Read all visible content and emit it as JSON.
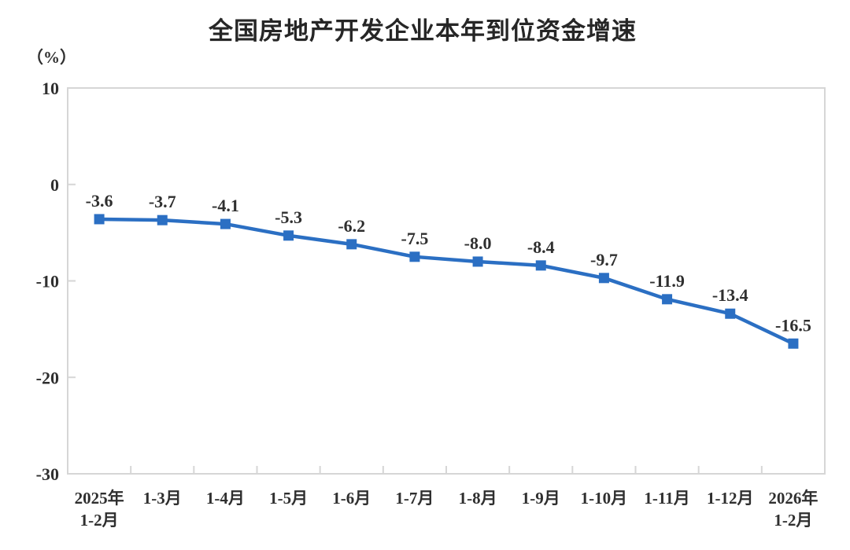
{
  "chart_data": {
    "type": "line",
    "title": "全国房地产开发企业本年到位资金增速",
    "ylabel": "（%）",
    "xlabel": "",
    "categories": [
      [
        "2025年",
        "1-2月"
      ],
      [
        "1-3月"
      ],
      [
        "1-4月"
      ],
      [
        "1-5月"
      ],
      [
        "1-6月"
      ],
      [
        "1-7月"
      ],
      [
        "1-8月"
      ],
      [
        "1-9月"
      ],
      [
        "1-10月"
      ],
      [
        "1-11月"
      ],
      [
        "1-12月"
      ],
      [
        "2026年",
        "1-2月"
      ]
    ],
    "values": [
      -3.6,
      -3.7,
      -4.1,
      -5.3,
      -6.2,
      -7.5,
      -8.0,
      -8.4,
      -9.7,
      -11.9,
      -13.4,
      -16.5
    ],
    "data_labels": [
      "-3.6",
      "-3.7",
      "-4.1",
      "-5.3",
      "-6.2",
      "-7.5",
      "-8.0",
      "-8.4",
      "-9.7",
      "-11.9",
      "-13.4",
      "-16.5"
    ],
    "y_ticks": [
      "10",
      "0",
      "-10",
      "-20",
      "-30"
    ],
    "y_tick_values": [
      10,
      0,
      -10,
      -20,
      -30
    ],
    "ylim": [
      -30,
      10
    ],
    "grid": false,
    "legend_position": "none",
    "colors": {
      "line": "#2b6fc3",
      "marker": "#2b6fc3",
      "axis": "#d6d6d6",
      "label_text": "#2f2f2f",
      "title_text": "#262626",
      "background": "#ffffff"
    }
  }
}
